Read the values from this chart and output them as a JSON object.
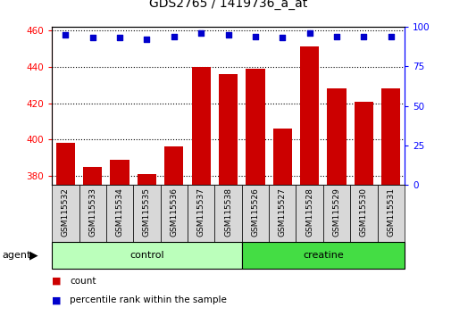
{
  "title": "GDS2765 / 1419736_a_at",
  "samples": [
    "GSM115532",
    "GSM115533",
    "GSM115534",
    "GSM115535",
    "GSM115536",
    "GSM115537",
    "GSM115538",
    "GSM115526",
    "GSM115527",
    "GSM115528",
    "GSM115529",
    "GSM115530",
    "GSM115531"
  ],
  "counts": [
    398,
    385,
    389,
    381,
    396,
    440,
    436,
    439,
    406,
    451,
    428,
    421,
    428
  ],
  "percentiles": [
    95,
    93,
    93,
    92,
    94,
    96,
    95,
    94,
    93,
    96,
    94,
    94,
    94
  ],
  "groups": [
    {
      "label": "control",
      "start": 0,
      "end": 7,
      "color": "#bbffbb"
    },
    {
      "label": "creatine",
      "start": 7,
      "end": 13,
      "color": "#44dd44"
    }
  ],
  "ylim_left": [
    375,
    462
  ],
  "ylim_right": [
    0,
    100
  ],
  "yticks_left": [
    380,
    400,
    420,
    440,
    460
  ],
  "yticks_right": [
    0,
    25,
    50,
    75,
    100
  ],
  "bar_color": "#cc0000",
  "dot_color": "#0000cc",
  "agent_label": "agent",
  "bar_bg_color": "#d8d8d8",
  "plot_bg_color": "#ffffff",
  "legend_count_label": "count",
  "legend_pct_label": "percentile rank within the sample"
}
